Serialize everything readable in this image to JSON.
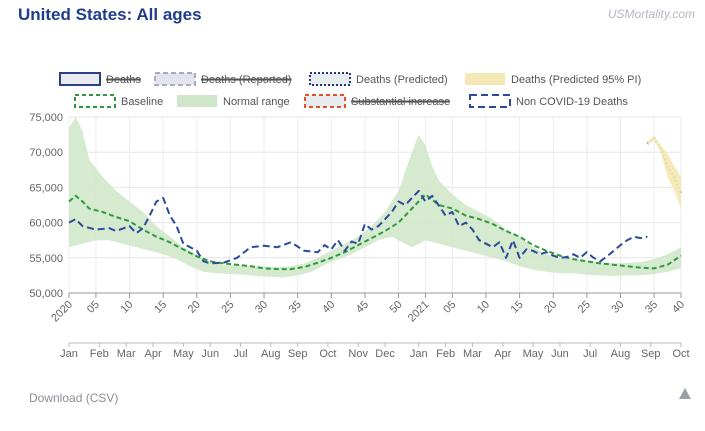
{
  "header": {
    "title": "United States: All ages",
    "brand": "USMortality.com"
  },
  "download_label": "Download (CSV)",
  "icons": {
    "scroll_up": "triangle-up-icon"
  },
  "colors": {
    "deaths": "#2b3f8c",
    "reported": "#a7acc6",
    "predicted": "#24357a",
    "pi_fill": "#f4e9b4",
    "baseline": "#2e9a3e",
    "normal_range": "#cfe6c8",
    "substantial": "#e0502d",
    "non_covid": "#2b4a9c"
  },
  "legend": [
    {
      "key": "deaths",
      "label": "Deaths",
      "hidden": true
    },
    {
      "key": "reported",
      "label": "Deaths (Reported)",
      "hidden": true
    },
    {
      "key": "predicted",
      "label": "Deaths (Predicted)",
      "hidden": false
    },
    {
      "key": "pi",
      "label": "Deaths (Predicted 95% PI)",
      "hidden": false
    },
    {
      "key": "baseline",
      "label": "Baseline",
      "hidden": false
    },
    {
      "key": "normal",
      "label": "Normal range",
      "hidden": false
    },
    {
      "key": "substantial",
      "label": "Substantial increase",
      "hidden": true
    },
    {
      "key": "noncovid",
      "label": "Non COVID-19 Deaths",
      "hidden": false
    }
  ],
  "chart_data": {
    "type": "line",
    "title": "United States: All ages",
    "ylim": [
      50000,
      75000
    ],
    "y_ticks": [
      "75,000",
      "70,000",
      "65,000",
      "60,000",
      "55,000",
      "50,000"
    ],
    "x_range_weeks": [
      1,
      92
    ],
    "week_ticks": [
      {
        "w": 1,
        "label": "2020"
      },
      {
        "w": 5,
        "label": "05"
      },
      {
        "w": 10,
        "label": "10"
      },
      {
        "w": 15,
        "label": "15"
      },
      {
        "w": 20,
        "label": "20"
      },
      {
        "w": 25,
        "label": "25"
      },
      {
        "w": 30,
        "label": "30"
      },
      {
        "w": 35,
        "label": "35"
      },
      {
        "w": 40,
        "label": "40"
      },
      {
        "w": 45,
        "label": "45"
      },
      {
        "w": 50,
        "label": "50"
      },
      {
        "w": 54,
        "label": "2021"
      },
      {
        "w": 58,
        "label": "05"
      },
      {
        "w": 63,
        "label": "10"
      },
      {
        "w": 68,
        "label": "15"
      },
      {
        "w": 73,
        "label": "20"
      },
      {
        "w": 78,
        "label": "25"
      },
      {
        "w": 83,
        "label": "30"
      },
      {
        "w": 88,
        "label": "35"
      },
      {
        "w": 92,
        "label": "40"
      }
    ],
    "month_ticks": [
      {
        "w": 1,
        "label": "Jan"
      },
      {
        "w": 5.5,
        "label": "Feb"
      },
      {
        "w": 9.5,
        "label": "Mar"
      },
      {
        "w": 13.5,
        "label": "Apr"
      },
      {
        "w": 18,
        "label": "May"
      },
      {
        "w": 22,
        "label": "Jun"
      },
      {
        "w": 26.5,
        "label": "Jul"
      },
      {
        "w": 31,
        "label": "Aug"
      },
      {
        "w": 35,
        "label": "Sep"
      },
      {
        "w": 39.5,
        "label": "Oct"
      },
      {
        "w": 44,
        "label": "Nov"
      },
      {
        "w": 48,
        "label": "Dec"
      },
      {
        "w": 53,
        "label": "Jan"
      },
      {
        "w": 57,
        "label": "Feb"
      },
      {
        "w": 61,
        "label": "Mar"
      },
      {
        "w": 65.5,
        "label": "Apr"
      },
      {
        "w": 70,
        "label": "May"
      },
      {
        "w": 74,
        "label": "Jun"
      },
      {
        "w": 78.5,
        "label": "Jul"
      },
      {
        "w": 83,
        "label": "Aug"
      },
      {
        "w": 87.5,
        "label": "Sep"
      },
      {
        "w": 92,
        "label": "Oct"
      }
    ],
    "series": [
      {
        "name": "Normal range",
        "type": "band",
        "upper": [
          [
            1,
            73500
          ],
          [
            2,
            75000
          ],
          [
            3,
            73000
          ],
          [
            4,
            69000
          ],
          [
            6,
            66500
          ],
          [
            8,
            64500
          ],
          [
            10,
            63000
          ],
          [
            12,
            61500
          ],
          [
            14,
            59500
          ],
          [
            16,
            58000
          ],
          [
            18,
            56500
          ],
          [
            20,
            55500
          ],
          [
            22,
            54500
          ],
          [
            24,
            54000
          ],
          [
            26,
            54000
          ],
          [
            28,
            53800
          ],
          [
            30,
            53800
          ],
          [
            32,
            53700
          ],
          [
            34,
            53800
          ],
          [
            36,
            54200
          ],
          [
            38,
            55000
          ],
          [
            40,
            56000
          ],
          [
            42,
            57000
          ],
          [
            44,
            58000
          ],
          [
            46,
            59500
          ],
          [
            48,
            61500
          ],
          [
            50,
            64500
          ],
          [
            52,
            70000
          ],
          [
            53,
            72500
          ],
          [
            54,
            71000
          ],
          [
            55,
            68000
          ],
          [
            56,
            66000
          ],
          [
            58,
            64000
          ],
          [
            60,
            62500
          ],
          [
            62,
            61500
          ],
          [
            64,
            60500
          ],
          [
            66,
            59000
          ],
          [
            68,
            58000
          ],
          [
            70,
            56500
          ],
          [
            72,
            55500
          ],
          [
            74,
            55000
          ],
          [
            76,
            54800
          ],
          [
            78,
            54600
          ],
          [
            80,
            54400
          ],
          [
            82,
            54200
          ],
          [
            84,
            54300
          ],
          [
            86,
            54400
          ],
          [
            88,
            54800
          ],
          [
            90,
            55500
          ],
          [
            92,
            56500
          ]
        ],
        "lower": [
          [
            1,
            56500
          ],
          [
            3,
            57000
          ],
          [
            5,
            57500
          ],
          [
            7,
            57500
          ],
          [
            9,
            57000
          ],
          [
            11,
            56500
          ],
          [
            13,
            56000
          ],
          [
            15,
            55500
          ],
          [
            17,
            54800
          ],
          [
            19,
            53800
          ],
          [
            21,
            53000
          ],
          [
            23,
            52800
          ],
          [
            25,
            52700
          ],
          [
            27,
            52600
          ],
          [
            29,
            52400
          ],
          [
            31,
            52300
          ],
          [
            33,
            52200
          ],
          [
            35,
            52500
          ],
          [
            37,
            53000
          ],
          [
            39,
            54000
          ],
          [
            41,
            54800
          ],
          [
            43,
            55500
          ],
          [
            45,
            56500
          ],
          [
            47,
            57500
          ],
          [
            49,
            58000
          ],
          [
            51,
            57000
          ],
          [
            52,
            56500
          ],
          [
            54,
            57500
          ],
          [
            56,
            57000
          ],
          [
            58,
            56500
          ],
          [
            60,
            56000
          ],
          [
            62,
            55500
          ],
          [
            64,
            55000
          ],
          [
            66,
            54500
          ],
          [
            68,
            53800
          ],
          [
            70,
            53300
          ],
          [
            72,
            53000
          ],
          [
            74,
            52800
          ],
          [
            76,
            52800
          ],
          [
            78,
            52600
          ],
          [
            80,
            52500
          ],
          [
            82,
            52400
          ],
          [
            84,
            52500
          ],
          [
            86,
            52500
          ],
          [
            88,
            52700
          ],
          [
            90,
            53000
          ],
          [
            92,
            53500
          ]
        ]
      },
      {
        "name": "Baseline",
        "type": "line",
        "points": [
          [
            1,
            63000
          ],
          [
            2,
            63800
          ],
          [
            3,
            63000
          ],
          [
            4,
            62000
          ],
          [
            6,
            61500
          ],
          [
            8,
            60800
          ],
          [
            10,
            60200
          ],
          [
            12,
            59000
          ],
          [
            14,
            58000
          ],
          [
            16,
            57200
          ],
          [
            18,
            56200
          ],
          [
            20,
            55200
          ],
          [
            22,
            54500
          ],
          [
            24,
            54200
          ],
          [
            26,
            54000
          ],
          [
            28,
            53800
          ],
          [
            30,
            53500
          ],
          [
            32,
            53400
          ],
          [
            34,
            53400
          ],
          [
            36,
            53700
          ],
          [
            38,
            54300
          ],
          [
            40,
            55000
          ],
          [
            42,
            55800
          ],
          [
            44,
            56800
          ],
          [
            46,
            57800
          ],
          [
            48,
            58800
          ],
          [
            50,
            60000
          ],
          [
            52,
            62000
          ],
          [
            54,
            64000
          ],
          [
            56,
            62500
          ],
          [
            58,
            62000
          ],
          [
            60,
            61000
          ],
          [
            62,
            60500
          ],
          [
            64,
            59800
          ],
          [
            66,
            58800
          ],
          [
            68,
            58000
          ],
          [
            70,
            56800
          ],
          [
            72,
            56000
          ],
          [
            74,
            55300
          ],
          [
            76,
            54800
          ],
          [
            78,
            54500
          ],
          [
            80,
            54200
          ],
          [
            82,
            54000
          ],
          [
            84,
            53800
          ],
          [
            86,
            53600
          ],
          [
            88,
            53500
          ],
          [
            90,
            54000
          ],
          [
            92,
            55300
          ]
        ]
      },
      {
        "name": "Non COVID-19 Deaths",
        "type": "line",
        "points": [
          [
            1,
            60000
          ],
          [
            2,
            60500
          ],
          [
            3,
            59500
          ],
          [
            5,
            59000
          ],
          [
            7,
            59200
          ],
          [
            8,
            58800
          ],
          [
            10,
            59500
          ],
          [
            11,
            58500
          ],
          [
            12,
            59200
          ],
          [
            13,
            61000
          ],
          [
            14,
            63000
          ],
          [
            15,
            63500
          ],
          [
            16,
            61000
          ],
          [
            17,
            59500
          ],
          [
            18,
            57000
          ],
          [
            19,
            56500
          ],
          [
            20,
            56000
          ],
          [
            21,
            54500
          ],
          [
            22,
            54200
          ],
          [
            24,
            54300
          ],
          [
            26,
            55000
          ],
          [
            28,
            56500
          ],
          [
            30,
            56700
          ],
          [
            32,
            56500
          ],
          [
            34,
            57200
          ],
          [
            36,
            56000
          ],
          [
            38,
            55800
          ],
          [
            39,
            56800
          ],
          [
            40,
            56200
          ],
          [
            41,
            57500
          ],
          [
            42,
            56000
          ],
          [
            43,
            57300
          ],
          [
            44,
            57000
          ],
          [
            45,
            59800
          ],
          [
            46,
            59000
          ],
          [
            47,
            59500
          ],
          [
            48,
            60500
          ],
          [
            49,
            61500
          ],
          [
            50,
            63000
          ],
          [
            51,
            62500
          ],
          [
            52,
            63500
          ],
          [
            53,
            64500
          ],
          [
            54,
            63000
          ],
          [
            55,
            63800
          ],
          [
            57,
            61000
          ],
          [
            58,
            61500
          ],
          [
            59,
            59500
          ],
          [
            60,
            60000
          ],
          [
            61,
            59000
          ],
          [
            62,
            57500
          ],
          [
            63,
            57000
          ],
          [
            64,
            56500
          ],
          [
            65,
            57200
          ],
          [
            66,
            55000
          ],
          [
            67,
            57500
          ],
          [
            68,
            55000
          ],
          [
            69,
            56200
          ],
          [
            70,
            56000
          ],
          [
            71,
            55500
          ],
          [
            72,
            55800
          ],
          [
            73,
            55300
          ],
          [
            74,
            55000
          ],
          [
            75,
            55100
          ],
          [
            76,
            55500
          ],
          [
            77,
            55000
          ],
          [
            78,
            55800
          ],
          [
            79,
            55000
          ],
          [
            80,
            54500
          ],
          [
            81,
            55200
          ],
          [
            82,
            56000
          ],
          [
            83,
            56800
          ],
          [
            84,
            57500
          ],
          [
            85,
            58000
          ],
          [
            86,
            57800
          ],
          [
            87,
            58000
          ]
        ]
      },
      {
        "name": "Deaths (Predicted)",
        "type": "line",
        "points": [
          [
            87,
            71200
          ],
          [
            88,
            72000
          ],
          [
            89,
            70500
          ],
          [
            90,
            68000
          ],
          [
            91,
            66500
          ],
          [
            92,
            64000
          ]
        ]
      },
      {
        "name": "Deaths (Predicted 95% PI)",
        "type": "band",
        "upper": [
          [
            87,
            71500
          ],
          [
            88,
            72300
          ],
          [
            89,
            71000
          ],
          [
            90,
            69800
          ],
          [
            91,
            68000
          ],
          [
            92,
            66500
          ]
        ],
        "lower": [
          [
            87,
            71000
          ],
          [
            88,
            71700
          ],
          [
            89,
            70000
          ],
          [
            90,
            66500
          ],
          [
            91,
            64500
          ],
          [
            92,
            62000
          ]
        ]
      }
    ]
  }
}
